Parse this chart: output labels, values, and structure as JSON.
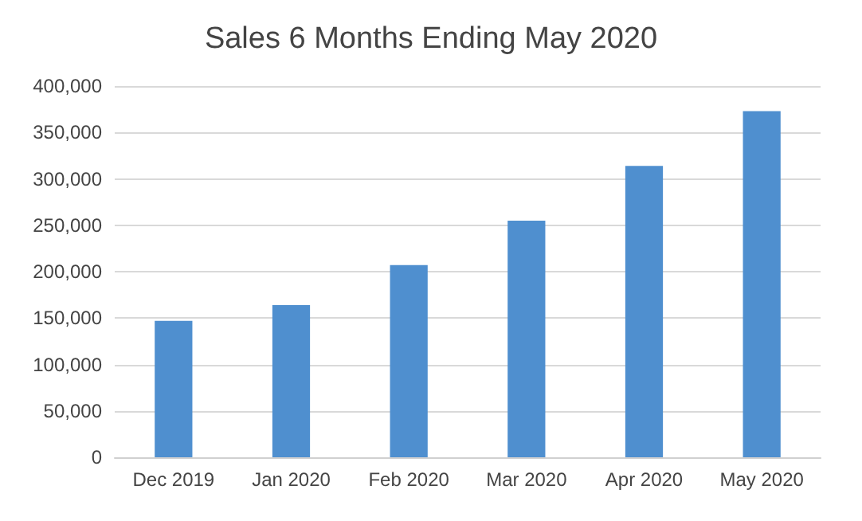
{
  "chart_data": {
    "type": "bar",
    "title": "Sales 6 Months Ending May 2020",
    "categories": [
      "Dec 2019",
      "Jan 2020",
      "Feb 2020",
      "Mar 2020",
      "Apr 2020",
      "May 2020"
    ],
    "values": [
      147000,
      164000,
      207000,
      255000,
      314000,
      373000
    ],
    "color": "#4f8fcf",
    "ylim": [
      0,
      400000
    ],
    "yticks": [
      0,
      {
        "value": 50000,
        "label": "50,000"
      },
      {
        "value": 100000,
        "label": "100,000"
      },
      {
        "value": 150000,
        "label": "150,000"
      },
      {
        "value": 200000,
        "label": "200,000"
      },
      {
        "value": 250000,
        "label": "250,000"
      },
      {
        "value": 300000,
        "label": "300,000"
      },
      {
        "value": 350000,
        "label": "350,000"
      },
      {
        "value": 400000,
        "label": "400,000"
      }
    ],
    "grid": "y"
  }
}
